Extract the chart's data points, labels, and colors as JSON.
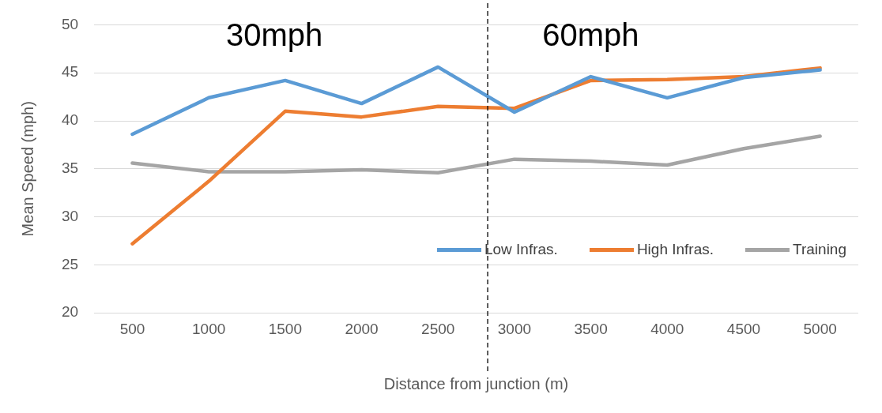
{
  "chart_data": {
    "type": "line",
    "xlabel": "Distance from junction (m)",
    "ylabel": "Mean Speed (mph)",
    "x": [
      500,
      1000,
      1500,
      2000,
      2500,
      3000,
      3500,
      4000,
      4500,
      5000
    ],
    "xlim": [
      250,
      5250
    ],
    "xticks": [
      500,
      1000,
      1500,
      2000,
      2500,
      3000,
      3500,
      4000,
      4500,
      5000
    ],
    "ylim": [
      20,
      50
    ],
    "yticks": [
      20,
      25,
      30,
      35,
      40,
      45,
      50
    ],
    "grid": "y",
    "legend": "bottom right",
    "marker": "none",
    "line_style": "solid",
    "series": [
      {
        "name": "Low Infras.",
        "color": "#5b9bd5",
        "values": [
          38.6,
          42.4,
          44.2,
          41.8,
          45.6,
          40.9,
          44.6,
          42.4,
          44.5,
          45.3
        ]
      },
      {
        "name": "High Infras.",
        "color": "#ed7d31",
        "values": [
          27.2,
          33.7,
          41.0,
          40.4,
          41.5,
          41.3,
          44.2,
          44.3,
          44.6,
          45.5
        ]
      },
      {
        "name": "Training",
        "color": "#a5a5a5",
        "values": [
          35.6,
          34.7,
          34.7,
          34.9,
          34.6,
          36.0,
          35.8,
          35.4,
          37.1,
          38.4
        ]
      }
    ],
    "ref_lines": [
      {
        "axis": "x",
        "value": 2825,
        "color": "#000000",
        "line_style": "dashed"
      }
    ],
    "annotations": [
      "30mph",
      "60mph"
    ]
  }
}
